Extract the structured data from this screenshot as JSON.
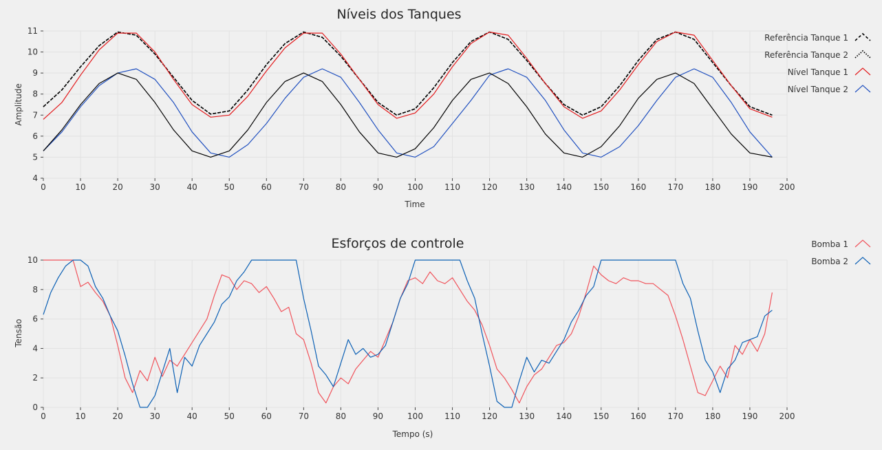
{
  "chart_data": [
    {
      "type": "line",
      "title": "Níveis dos Tanques",
      "xlabel": "Time",
      "ylabel": "Amplitude",
      "xlim": [
        0,
        200
      ],
      "ylim": [
        4,
        11
      ],
      "xticks": [
        0,
        10,
        20,
        30,
        40,
        50,
        60,
        70,
        80,
        90,
        100,
        110,
        120,
        130,
        140,
        150,
        160,
        170,
        180,
        190,
        200
      ],
      "yticks": [
        4,
        5,
        6,
        7,
        8,
        9,
        10,
        11
      ],
      "grid": true,
      "legend_position": "top-right",
      "series": [
        {
          "name": "Referência Tanque 1",
          "color": "#000000",
          "style": "dashed",
          "x": [
            0,
            5,
            10,
            15,
            20,
            25,
            30,
            35,
            40,
            45,
            50,
            55,
            60,
            65,
            70,
            75,
            80,
            85,
            90,
            95,
            100,
            105,
            110,
            115,
            120,
            125,
            130,
            135,
            140,
            145,
            150,
            155,
            160,
            165,
            170,
            175,
            180,
            185,
            190,
            196
          ],
          "y": [
            7.4,
            8.2,
            9.3,
            10.3,
            10.95,
            10.8,
            9.9,
            8.8,
            7.7,
            7.05,
            7.2,
            8.2,
            9.4,
            10.4,
            10.95,
            10.7,
            9.8,
            8.7,
            7.6,
            7.0,
            7.3,
            8.3,
            9.5,
            10.5,
            10.95,
            10.6,
            9.6,
            8.5,
            7.5,
            7.0,
            7.4,
            8.4,
            9.6,
            10.6,
            10.95,
            10.6,
            9.5,
            8.4,
            7.4,
            7.0
          ]
        },
        {
          "name": "Referência Tanque 2",
          "color": "#000000",
          "style": "dotted",
          "x": [
            0,
            5,
            10,
            15,
            20,
            25,
            30,
            35,
            40,
            45,
            50,
            55,
            60,
            65,
            70,
            75,
            80,
            85,
            90,
            95,
            100,
            105,
            110,
            115,
            120,
            125,
            130,
            135,
            140,
            145,
            150,
            155,
            160,
            165,
            170,
            175,
            180,
            185,
            190,
            196
          ],
          "y": [
            7.4,
            8.2,
            9.3,
            10.3,
            10.95,
            10.8,
            9.9,
            8.8,
            7.7,
            7.05,
            7.2,
            8.2,
            9.4,
            10.4,
            10.95,
            10.7,
            9.8,
            8.7,
            7.6,
            7.0,
            7.3,
            8.3,
            9.5,
            10.5,
            10.95,
            10.6,
            9.6,
            8.5,
            7.5,
            7.0,
            7.4,
            8.4,
            9.6,
            10.6,
            10.95,
            10.6,
            9.5,
            8.4,
            7.4,
            7.0
          ]
        },
        {
          "name": "Nível Tanque 1",
          "color": "#e31a1c",
          "style": "solid",
          "x": [
            0,
            5,
            10,
            15,
            20,
            25,
            30,
            35,
            40,
            45,
            50,
            55,
            60,
            65,
            70,
            75,
            80,
            85,
            90,
            95,
            100,
            105,
            110,
            115,
            120,
            125,
            130,
            135,
            140,
            145,
            150,
            155,
            160,
            165,
            170,
            175,
            180,
            185,
            190,
            196
          ],
          "y": [
            6.8,
            7.6,
            8.9,
            10.1,
            10.9,
            10.9,
            10.0,
            8.7,
            7.5,
            6.9,
            7.0,
            7.9,
            9.1,
            10.2,
            10.9,
            10.9,
            9.9,
            8.7,
            7.5,
            6.85,
            7.1,
            8.0,
            9.3,
            10.4,
            10.95,
            10.8,
            9.7,
            8.5,
            7.4,
            6.85,
            7.2,
            8.2,
            9.4,
            10.5,
            10.95,
            10.8,
            9.6,
            8.4,
            7.3,
            6.9
          ]
        },
        {
          "name": "Nível Tanque 2",
          "color": "#1f4fbf",
          "style": "solid",
          "x": [
            0,
            5,
            10,
            15,
            20,
            25,
            30,
            35,
            40,
            45,
            50,
            55,
            60,
            65,
            70,
            75,
            80,
            85,
            90,
            95,
            100,
            105,
            110,
            115,
            120,
            125,
            130,
            135,
            140,
            145,
            150,
            155,
            160,
            165,
            170,
            175,
            180,
            185,
            190,
            196
          ],
          "y": [
            5.3,
            6.2,
            7.4,
            8.4,
            9.0,
            9.2,
            8.7,
            7.6,
            6.2,
            5.2,
            5.0,
            5.6,
            6.6,
            7.8,
            8.8,
            9.2,
            8.8,
            7.6,
            6.3,
            5.2,
            5.0,
            5.5,
            6.6,
            7.7,
            8.9,
            9.2,
            8.8,
            7.7,
            6.3,
            5.2,
            5.0,
            5.5,
            6.5,
            7.7,
            8.8,
            9.2,
            8.8,
            7.6,
            6.2,
            5.0
          ]
        },
        {
          "name": "",
          "color": "#000000",
          "style": "solid",
          "x": [
            0,
            5,
            10,
            15,
            20,
            25,
            30,
            35,
            40,
            45,
            50,
            55,
            60,
            65,
            70,
            75,
            80,
            85,
            90,
            95,
            100,
            105,
            110,
            115,
            120,
            125,
            130,
            135,
            140,
            145,
            150,
            155,
            160,
            165,
            170,
            175,
            180,
            185,
            190,
            196
          ],
          "y": [
            5.3,
            6.3,
            7.5,
            8.5,
            9.0,
            8.7,
            7.6,
            6.3,
            5.3,
            5.0,
            5.3,
            6.3,
            7.6,
            8.6,
            9.0,
            8.6,
            7.5,
            6.2,
            5.2,
            5.0,
            5.4,
            6.4,
            7.7,
            8.7,
            9.0,
            8.5,
            7.4,
            6.1,
            5.2,
            5.0,
            5.5,
            6.5,
            7.8,
            8.7,
            9.0,
            8.5,
            7.3,
            6.1,
            5.2,
            5.0
          ]
        }
      ]
    },
    {
      "type": "line",
      "title": "Esforços de controle",
      "xlabel": "Tempo (s)",
      "ylabel": "Tensão",
      "xlim": [
        0,
        200
      ],
      "ylim": [
        0,
        10
      ],
      "xticks": [
        0,
        10,
        20,
        30,
        40,
        50,
        60,
        70,
        80,
        90,
        100,
        110,
        120,
        130,
        140,
        150,
        160,
        170,
        180,
        190,
        200
      ],
      "yticks": [
        0,
        2,
        4,
        6,
        8,
        10
      ],
      "grid": true,
      "legend_position": "top-right",
      "series": [
        {
          "name": "Bomba 1",
          "color": "#f0525a",
          "style": "solid",
          "x": [
            0,
            4,
            8,
            10,
            12,
            14,
            16,
            18,
            20,
            22,
            24,
            26,
            28,
            30,
            32,
            34,
            36,
            38,
            40,
            42,
            44,
            46,
            48,
            50,
            52,
            54,
            56,
            58,
            60,
            62,
            64,
            66,
            68,
            70,
            72,
            74,
            76,
            78,
            80,
            82,
            84,
            86,
            88,
            90,
            92,
            94,
            96,
            98,
            100,
            102,
            104,
            106,
            108,
            110,
            112,
            114,
            116,
            118,
            120,
            122,
            124,
            126,
            128,
            130,
            132,
            134,
            136,
            138,
            140,
            142,
            144,
            146,
            148,
            150,
            152,
            154,
            156,
            158,
            160,
            162,
            164,
            166,
            168,
            170,
            172,
            174,
            176,
            178,
            180,
            182,
            184,
            186,
            188,
            190,
            192,
            194,
            196
          ],
          "y": [
            10,
            10,
            10,
            8.2,
            8.5,
            7.8,
            7.2,
            6.2,
            4.2,
            2.0,
            1.0,
            2.5,
            1.8,
            3.4,
            2.1,
            3.2,
            2.8,
            3.6,
            4.4,
            5.2,
            6.0,
            7.6,
            9.0,
            8.8,
            8.0,
            8.6,
            8.4,
            7.8,
            8.2,
            7.4,
            6.5,
            6.8,
            5.0,
            4.6,
            3.0,
            1.0,
            0.3,
            1.4,
            2.0,
            1.6,
            2.6,
            3.2,
            3.8,
            3.4,
            4.6,
            5.8,
            7.4,
            8.6,
            8.8,
            8.4,
            9.2,
            8.6,
            8.4,
            8.8,
            8.0,
            7.2,
            6.6,
            5.6,
            4.2,
            2.6,
            2.0,
            1.2,
            0.3,
            1.4,
            2.2,
            2.6,
            3.4,
            4.2,
            4.4,
            5.0,
            6.2,
            7.8,
            9.6,
            9.0,
            8.6,
            8.4,
            8.8,
            8.6,
            8.6,
            8.4,
            8.4,
            8.0,
            7.6,
            6.2,
            4.6,
            2.8,
            1.0,
            0.8,
            1.8,
            2.8,
            2.0,
            4.2,
            3.6,
            4.6,
            3.8,
            5.0,
            7.8
          ]
        },
        {
          "name": "Bomba 2",
          "color": "#0a5fb4",
          "style": "solid",
          "x": [
            0,
            2,
            4,
            6,
            8,
            10,
            12,
            14,
            16,
            18,
            20,
            22,
            24,
            26,
            28,
            30,
            32,
            34,
            36,
            38,
            40,
            42,
            44,
            46,
            48,
            50,
            52,
            54,
            56,
            58,
            60,
            62,
            64,
            66,
            68,
            70,
            72,
            74,
            76,
            78,
            80,
            82,
            84,
            86,
            88,
            90,
            92,
            94,
            96,
            98,
            100,
            102,
            104,
            106,
            108,
            110,
            112,
            114,
            116,
            118,
            120,
            122,
            124,
            126,
            128,
            130,
            132,
            134,
            136,
            138,
            140,
            142,
            144,
            146,
            148,
            150,
            152,
            154,
            156,
            158,
            160,
            162,
            164,
            166,
            168,
            170,
            172,
            174,
            176,
            178,
            180,
            182,
            184,
            186,
            188,
            190,
            192,
            194,
            196
          ],
          "y": [
            6.3,
            7.8,
            8.8,
            9.6,
            10,
            10,
            9.6,
            8.2,
            7.4,
            6.2,
            5.2,
            3.5,
            1.6,
            0,
            0,
            0.8,
            2.4,
            4.0,
            1.0,
            3.4,
            2.8,
            4.2,
            5.0,
            5.8,
            7.0,
            7.5,
            8.6,
            9.2,
            10,
            10,
            10,
            10,
            10,
            10,
            10,
            7.4,
            5.2,
            2.8,
            2.2,
            1.4,
            3.0,
            4.6,
            3.6,
            4.0,
            3.4,
            3.6,
            4.2,
            5.8,
            7.4,
            8.4,
            10,
            10,
            10,
            10,
            10,
            10,
            10,
            8.6,
            7.4,
            5.0,
            2.8,
            0.4,
            0,
            0,
            1.8,
            3.4,
            2.4,
            3.2,
            3.0,
            3.8,
            4.6,
            5.8,
            6.6,
            7.6,
            8.2,
            10,
            10,
            10,
            10,
            10,
            10,
            10,
            10,
            10,
            10,
            10,
            8.4,
            7.4,
            5.2,
            3.2,
            2.4,
            1.0,
            2.6,
            3.2,
            4.4,
            4.6,
            4.8,
            6.2,
            6.6
          ]
        }
      ]
    }
  ]
}
